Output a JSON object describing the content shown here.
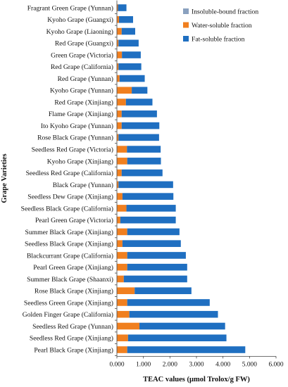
{
  "chart_data": {
    "type": "bar",
    "orientation": "horizontal",
    "stacked": true,
    "xlabel": "TEAC values (μmol Trolox/g FW)",
    "ylabel": "Grape Varieties",
    "xlim": [
      0,
      6
    ],
    "xticks": [
      "0.000",
      "1.000",
      "2.000",
      "3.000",
      "4.000",
      "5.000",
      "6.000"
    ],
    "legend_position": "top-right",
    "categories": [
      "Fragrant Green Grape (Yunnan)",
      "Kyoho Grape (Guangxi)",
      "Kyoho Grape (Liaoning)",
      "Red Grape (Guangxi)",
      "Green Grape (Victoria)",
      "Red Grape (California)",
      "Red Grape (Yunnan)",
      "Kyoho Grape (Yunnan)",
      "Red Grape (Xinjiang)",
      "Flame Grape (Xinjiang)",
      "Ito Kyoho Grape (Yunnan)",
      "Rose Black Grape (Yunnan)",
      "Seedless Red Grape (Victoria)",
      "Kyoho Grape (Xinjiang)",
      "Seedless Red Grape (California)",
      "Black Grape (Yunnan)",
      "Seedless Dew Grape (Xinjiang)",
      "Seedless Black Grape (California)",
      "Pearl Green Grape (Victoria)",
      "Summer Black Grape (Xinjiang)",
      "Seedless Black Grape (Xinjiang)",
      "Blackcurrant Grape (California)",
      "Pearl Green Grape (Xinjiang)",
      "Summer Black Grape (Shaanxi)",
      "Rose Black Grape (Xinjiang)",
      "Seedless Green Grape (Xinjiang)",
      "Golden Finger Grape (California)",
      "Seedless Red Grape (Yunnan)",
      "Seedless Red Grape (Xinjiang)",
      "Pearl Black Grape (Xinjiang)"
    ],
    "series": [
      {
        "name": "Insoluble-bound fraction",
        "color": "#8aa1bf",
        "values": [
          0.01,
          0.01,
          0.01,
          0.01,
          0.01,
          0.01,
          0.01,
          0.01,
          0.01,
          0.01,
          0.01,
          0.01,
          0.01,
          0.01,
          0.01,
          0.01,
          0.01,
          0.01,
          0.01,
          0.01,
          0.01,
          0.01,
          0.01,
          0.01,
          0.01,
          0.01,
          0.01,
          0.01,
          0.01,
          0.01
        ]
      },
      {
        "name": "Water-soluble fraction",
        "color": "#f07f1f",
        "values": [
          0.03,
          0.07,
          0.17,
          0.05,
          0.18,
          0.05,
          0.09,
          0.55,
          0.33,
          0.17,
          0.17,
          0.05,
          0.37,
          0.38,
          0.17,
          0.05,
          0.2,
          0.35,
          0.12,
          0.38,
          0.2,
          0.38,
          0.38,
          0.25,
          0.66,
          0.38,
          0.46,
          0.84,
          0.41,
          0.38
        ]
      },
      {
        "name": "Fat-soluble fraction",
        "color": "#1f6fc1",
        "values": [
          0.32,
          0.53,
          0.51,
          0.76,
          0.71,
          0.86,
          0.95,
          0.59,
          1.0,
          1.33,
          1.42,
          1.53,
          1.27,
          1.27,
          1.54,
          2.06,
          1.92,
          1.86,
          2.09,
          1.97,
          2.2,
          2.21,
          2.26,
          2.39,
          2.14,
          3.11,
          3.34,
          3.23,
          3.71,
          4.45
        ]
      }
    ]
  }
}
